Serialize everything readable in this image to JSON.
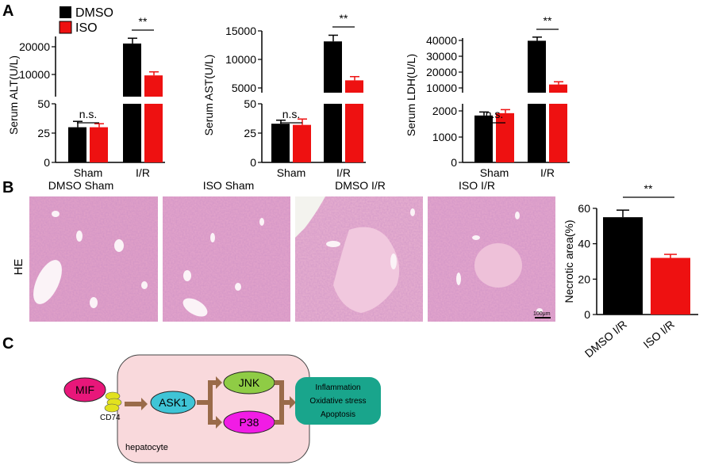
{
  "panels": {
    "a": "A",
    "b": "B",
    "c": "C"
  },
  "colors": {
    "dmso": "#000000",
    "iso": "#ee1111",
    "he_tissue": "#e4a3c8",
    "cell_body": "#f9d9dc"
  },
  "legend": {
    "dmso": "DMSO",
    "iso": "ISO"
  },
  "chart_data": [
    {
      "type": "bar",
      "panel": "A",
      "ylabel": "Serum ALT(U/L)",
      "categories": [
        "Sham",
        "I/R"
      ],
      "series": [
        {
          "name": "DMSO",
          "values": [
            30,
            21000
          ],
          "errors": [
            5,
            1500
          ]
        },
        {
          "name": "ISO",
          "values": [
            30,
            12000
          ],
          "errors": [
            3,
            1000
          ]
        }
      ],
      "broken_axis": {
        "lower": {
          "range": [
            0,
            50
          ],
          "ticks": [
            "0",
            "25",
            "50"
          ]
        },
        "upper": {
          "range": [
            6000,
            23000
          ],
          "ticks": [
            "10000",
            "20000"
          ]
        }
      },
      "significance": [
        "n.s.",
        "**"
      ]
    },
    {
      "type": "bar",
      "panel": "A",
      "ylabel": "Serum AST(U/L)",
      "categories": [
        "Sham",
        "I/R"
      ],
      "series": [
        {
          "name": "DMSO",
          "values": [
            33,
            13300
          ],
          "errors": [
            3,
            1000
          ]
        },
        {
          "name": "ISO",
          "values": [
            32,
            7000
          ],
          "errors": [
            5,
            600
          ]
        }
      ],
      "broken_axis": {
        "lower": {
          "range": [
            0,
            50
          ],
          "ticks": [
            "0",
            "25",
            "50"
          ]
        },
        "upper": {
          "range": [
            5000,
            15000
          ],
          "ticks": [
            "5000",
            "10000",
            "15000"
          ]
        }
      },
      "significance": [
        "n.s.",
        "**"
      ]
    },
    {
      "type": "bar",
      "panel": "A",
      "ylabel": "Serum LDH(U/L)",
      "categories": [
        "Sham",
        "I/R"
      ],
      "series": [
        {
          "name": "DMSO",
          "values": [
            2000,
            38500
          ],
          "errors": [
            150,
            2000
          ]
        },
        {
          "name": "ISO",
          "values": [
            2100,
            14500
          ],
          "errors": [
            150,
            1500
          ]
        }
      ],
      "broken_axis": {
        "lower": {
          "range": [
            0,
            2500
          ],
          "ticks": [
            "0",
            "1000",
            "2000"
          ]
        },
        "upper": {
          "range": [
            10000,
            40000
          ],
          "ticks": [
            "10000",
            "20000",
            "30000",
            "40000"
          ]
        }
      },
      "significance": [
        "n.s.",
        "**"
      ]
    },
    {
      "type": "bar",
      "panel": "B",
      "ylabel": "Necrotic area(%)",
      "categories": [
        "DMSO I/R",
        "ISO I/R"
      ],
      "values": [
        55,
        32
      ],
      "errors": [
        4,
        2
      ],
      "ylim": [
        0,
        60
      ],
      "yticks": [
        "0",
        "20",
        "40",
        "60"
      ],
      "significance": [
        "**"
      ]
    }
  ],
  "he": {
    "row_label": "HE",
    "titles": [
      "DMSO Sham",
      "ISO Sham",
      "DMSO I/R",
      "ISO I/R"
    ],
    "scale_bar": "100μm"
  },
  "pathway": {
    "mif": "MIF",
    "cd74": "CD74",
    "ask1": "ASK1",
    "jnk": "JNK",
    "p38": "P38",
    "hepatocyte": "hepatocyte",
    "outcomes": [
      "Inflammation",
      "Oxidative stress",
      "Apoptosis"
    ]
  }
}
